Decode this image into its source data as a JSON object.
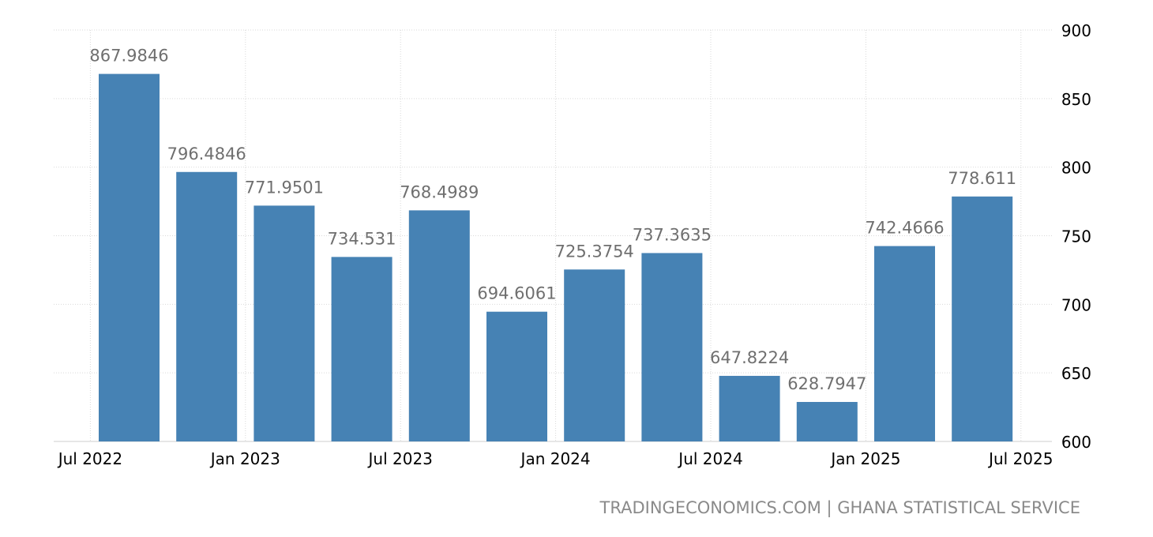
{
  "chart_data": {
    "type": "bar",
    "categories": [
      "2022 Q3",
      "2022 Q4",
      "2023 Q1",
      "2023 Q2",
      "2023 Q3",
      "2023 Q4",
      "2024 Q1",
      "2024 Q2",
      "2024 Q3",
      "2024 Q4",
      "2025 Q1",
      "2025 Q2"
    ],
    "values": [
      867.9846,
      796.4846,
      771.9501,
      734.531,
      768.4989,
      694.6061,
      725.3754,
      737.3635,
      647.8224,
      628.7947,
      742.4666,
      778.611
    ],
    "value_labels": [
      "867.9846",
      "796.4846",
      "771.9501",
      "734.531",
      "768.4989",
      "694.6061",
      "725.3754",
      "737.3635",
      "647.8224",
      "628.7947",
      "742.4666",
      "778.611"
    ],
    "x_tick_labels": [
      "Jul 2022",
      "Jan 2023",
      "Jul 2023",
      "Jan 2024",
      "Jul 2024",
      "Jan 2025",
      "Jul 2025"
    ],
    "y_ticks": [
      600,
      650,
      700,
      750,
      800,
      850,
      900
    ],
    "ylim": [
      600,
      900
    ],
    "y_axis_side": "right",
    "grid": true,
    "colors": {
      "bar": "#4682b4",
      "label": "#6f6f6f",
      "grid": "#d9d9d9"
    },
    "title": "",
    "xlabel": "",
    "ylabel": ""
  },
  "source_credit": "TRADINGECONOMICS.COM | GHANA STATISTICAL SERVICE"
}
